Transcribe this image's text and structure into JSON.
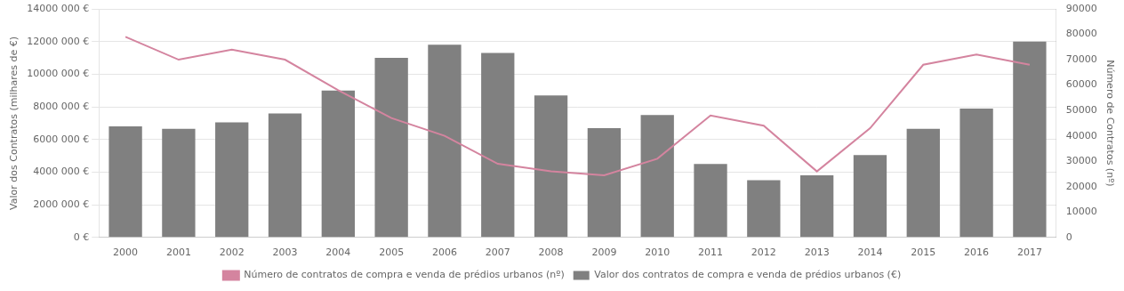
{
  "chart_data": {
    "type": "bar",
    "categories": [
      "2000",
      "2001",
      "2002",
      "2003",
      "2004",
      "2005",
      "2006",
      "2007",
      "2008",
      "2009",
      "2010",
      "2011",
      "2012",
      "2013",
      "2014",
      "2015",
      "2016",
      "2017"
    ],
    "series": [
      {
        "name": "Valor dos contratos de compra e venda de prédios urbanos (€)",
        "type": "bar",
        "color": "#808080",
        "values": [
          6800000,
          6650000,
          7050000,
          7600000,
          9000000,
          11000000,
          11800000,
          11300000,
          8700000,
          6700000,
          7500000,
          4500000,
          3500000,
          3800000,
          5050000,
          6650000,
          7900000,
          12000000
        ]
      },
      {
        "name": "Número de contratos de compra e venda de prédios urbanos (nº)",
        "type": "line",
        "axis": "y2",
        "color": "#d4849f",
        "values": [
          79000,
          70000,
          74000,
          70000,
          58000,
          47000,
          40000,
          29000,
          26000,
          24500,
          31000,
          48000,
          44000,
          26000,
          43000,
          68000,
          72000,
          68000
        ]
      }
    ],
    "ylabel": "Valor dos Contratos (milhares de €)",
    "y2label": "Número de Contratos (nº)",
    "ylim": [
      0,
      14000000
    ],
    "yticks": [
      {
        "value": 0,
        "label": "0 €"
      },
      {
        "value": 2000000,
        "label": "2000 000 €"
      },
      {
        "value": 4000000,
        "label": "4000 000 €"
      },
      {
        "value": 6000000,
        "label": "6000 000 €"
      },
      {
        "value": 8000000,
        "label": "8000 000 €"
      },
      {
        "value": 10000000,
        "label": "10000 000 €"
      },
      {
        "value": 12000000,
        "label": "12000 000 €"
      },
      {
        "value": 14000000,
        "label": "14000 000 €"
      }
    ],
    "y2lim": [
      0,
      90000
    ],
    "y2ticks": [
      0,
      10000,
      20000,
      30000,
      40000,
      50000,
      60000,
      70000,
      80000,
      90000
    ],
    "grid": true,
    "legend": "bottom"
  }
}
